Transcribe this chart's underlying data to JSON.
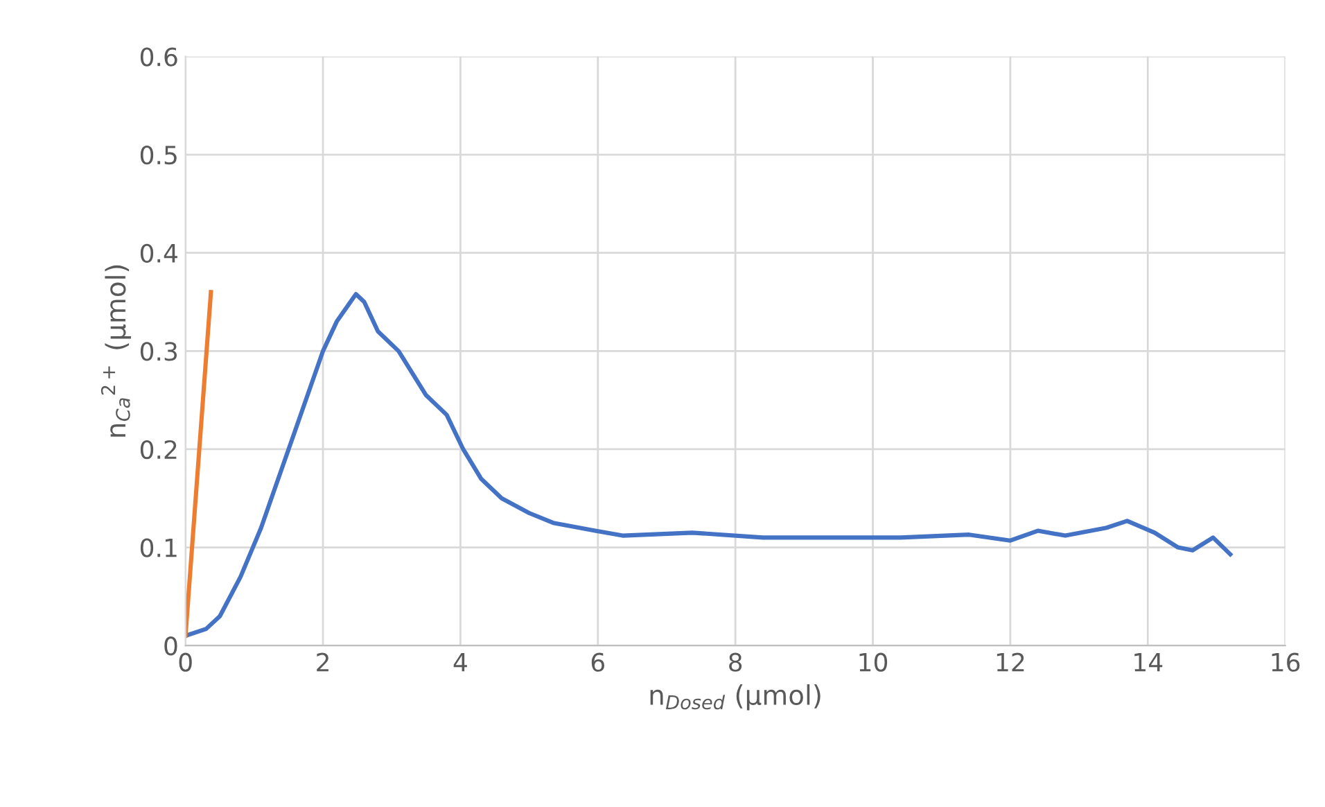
{
  "chart_data": {
    "type": "line",
    "xlabel": "n$_{Dosed}$ (µmol)",
    "ylabel": "n$_{Ca}$$^{2+}$ (µmol)",
    "xlim": [
      0,
      16
    ],
    "xticks": [
      0,
      2,
      4,
      6,
      8,
      10,
      12,
      14,
      16
    ],
    "ylim": [
      0,
      0.6
    ],
    "yticks": [
      0,
      0.1,
      0.2,
      0.3,
      0.4,
      0.5,
      0.6
    ],
    "grid": true,
    "legend": false,
    "marker": "none",
    "line_style": "solid",
    "series": [
      {
        "color": "#4472c4",
        "x": [
          0,
          0.3,
          0.5,
          0.8,
          1.1,
          1.3,
          1.6,
          2.0,
          2.2,
          2.48,
          2.6,
          2.8,
          3.1,
          3.5,
          3.8,
          4.04,
          4.3,
          4.6,
          5.0,
          5.35,
          5.96,
          6.36,
          7.37,
          8.4,
          9.4,
          10.4,
          11.4,
          12.0,
          12.4,
          12.8,
          13.4,
          13.7,
          14.1,
          14.44,
          14.65,
          14.95,
          15.2
        ],
        "values": [
          0.01,
          0.017,
          0.03,
          0.07,
          0.12,
          0.16,
          0.22,
          0.3,
          0.33,
          0.358,
          0.35,
          0.32,
          0.3,
          0.255,
          0.235,
          0.2,
          0.17,
          0.15,
          0.135,
          0.125,
          0.117,
          0.112,
          0.115,
          0.11,
          0.11,
          0.11,
          0.113,
          0.107,
          0.117,
          0.112,
          0.12,
          0.127,
          0.115,
          0.1,
          0.097,
          0.11,
          0.093
        ]
      },
      {
        "color": "#ed7d31",
        "x": [
          0,
          0.37
        ],
        "values": [
          0.01,
          0.36
        ]
      }
    ]
  }
}
